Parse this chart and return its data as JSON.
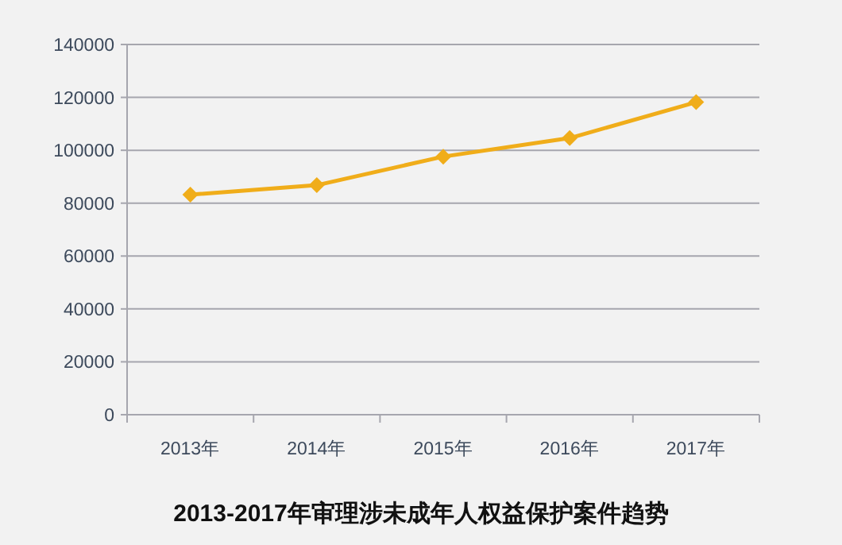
{
  "chart_data": {
    "type": "line",
    "title": "2013-2017年审理涉未成年人权益保护案件趋势",
    "categories": [
      "2013年",
      "2014年",
      "2015年",
      "2016年",
      "2017年"
    ],
    "series": [
      {
        "color": "#f0ad1a",
        "values": [
          83200,
          86800,
          97600,
          104600,
          118200
        ]
      }
    ],
    "ylim": [
      0,
      140000
    ],
    "yticks": [
      0,
      20000,
      40000,
      60000,
      80000,
      100000,
      120000,
      140000
    ],
    "grid": "y",
    "marker": "diamond",
    "line_style": "solid"
  }
}
